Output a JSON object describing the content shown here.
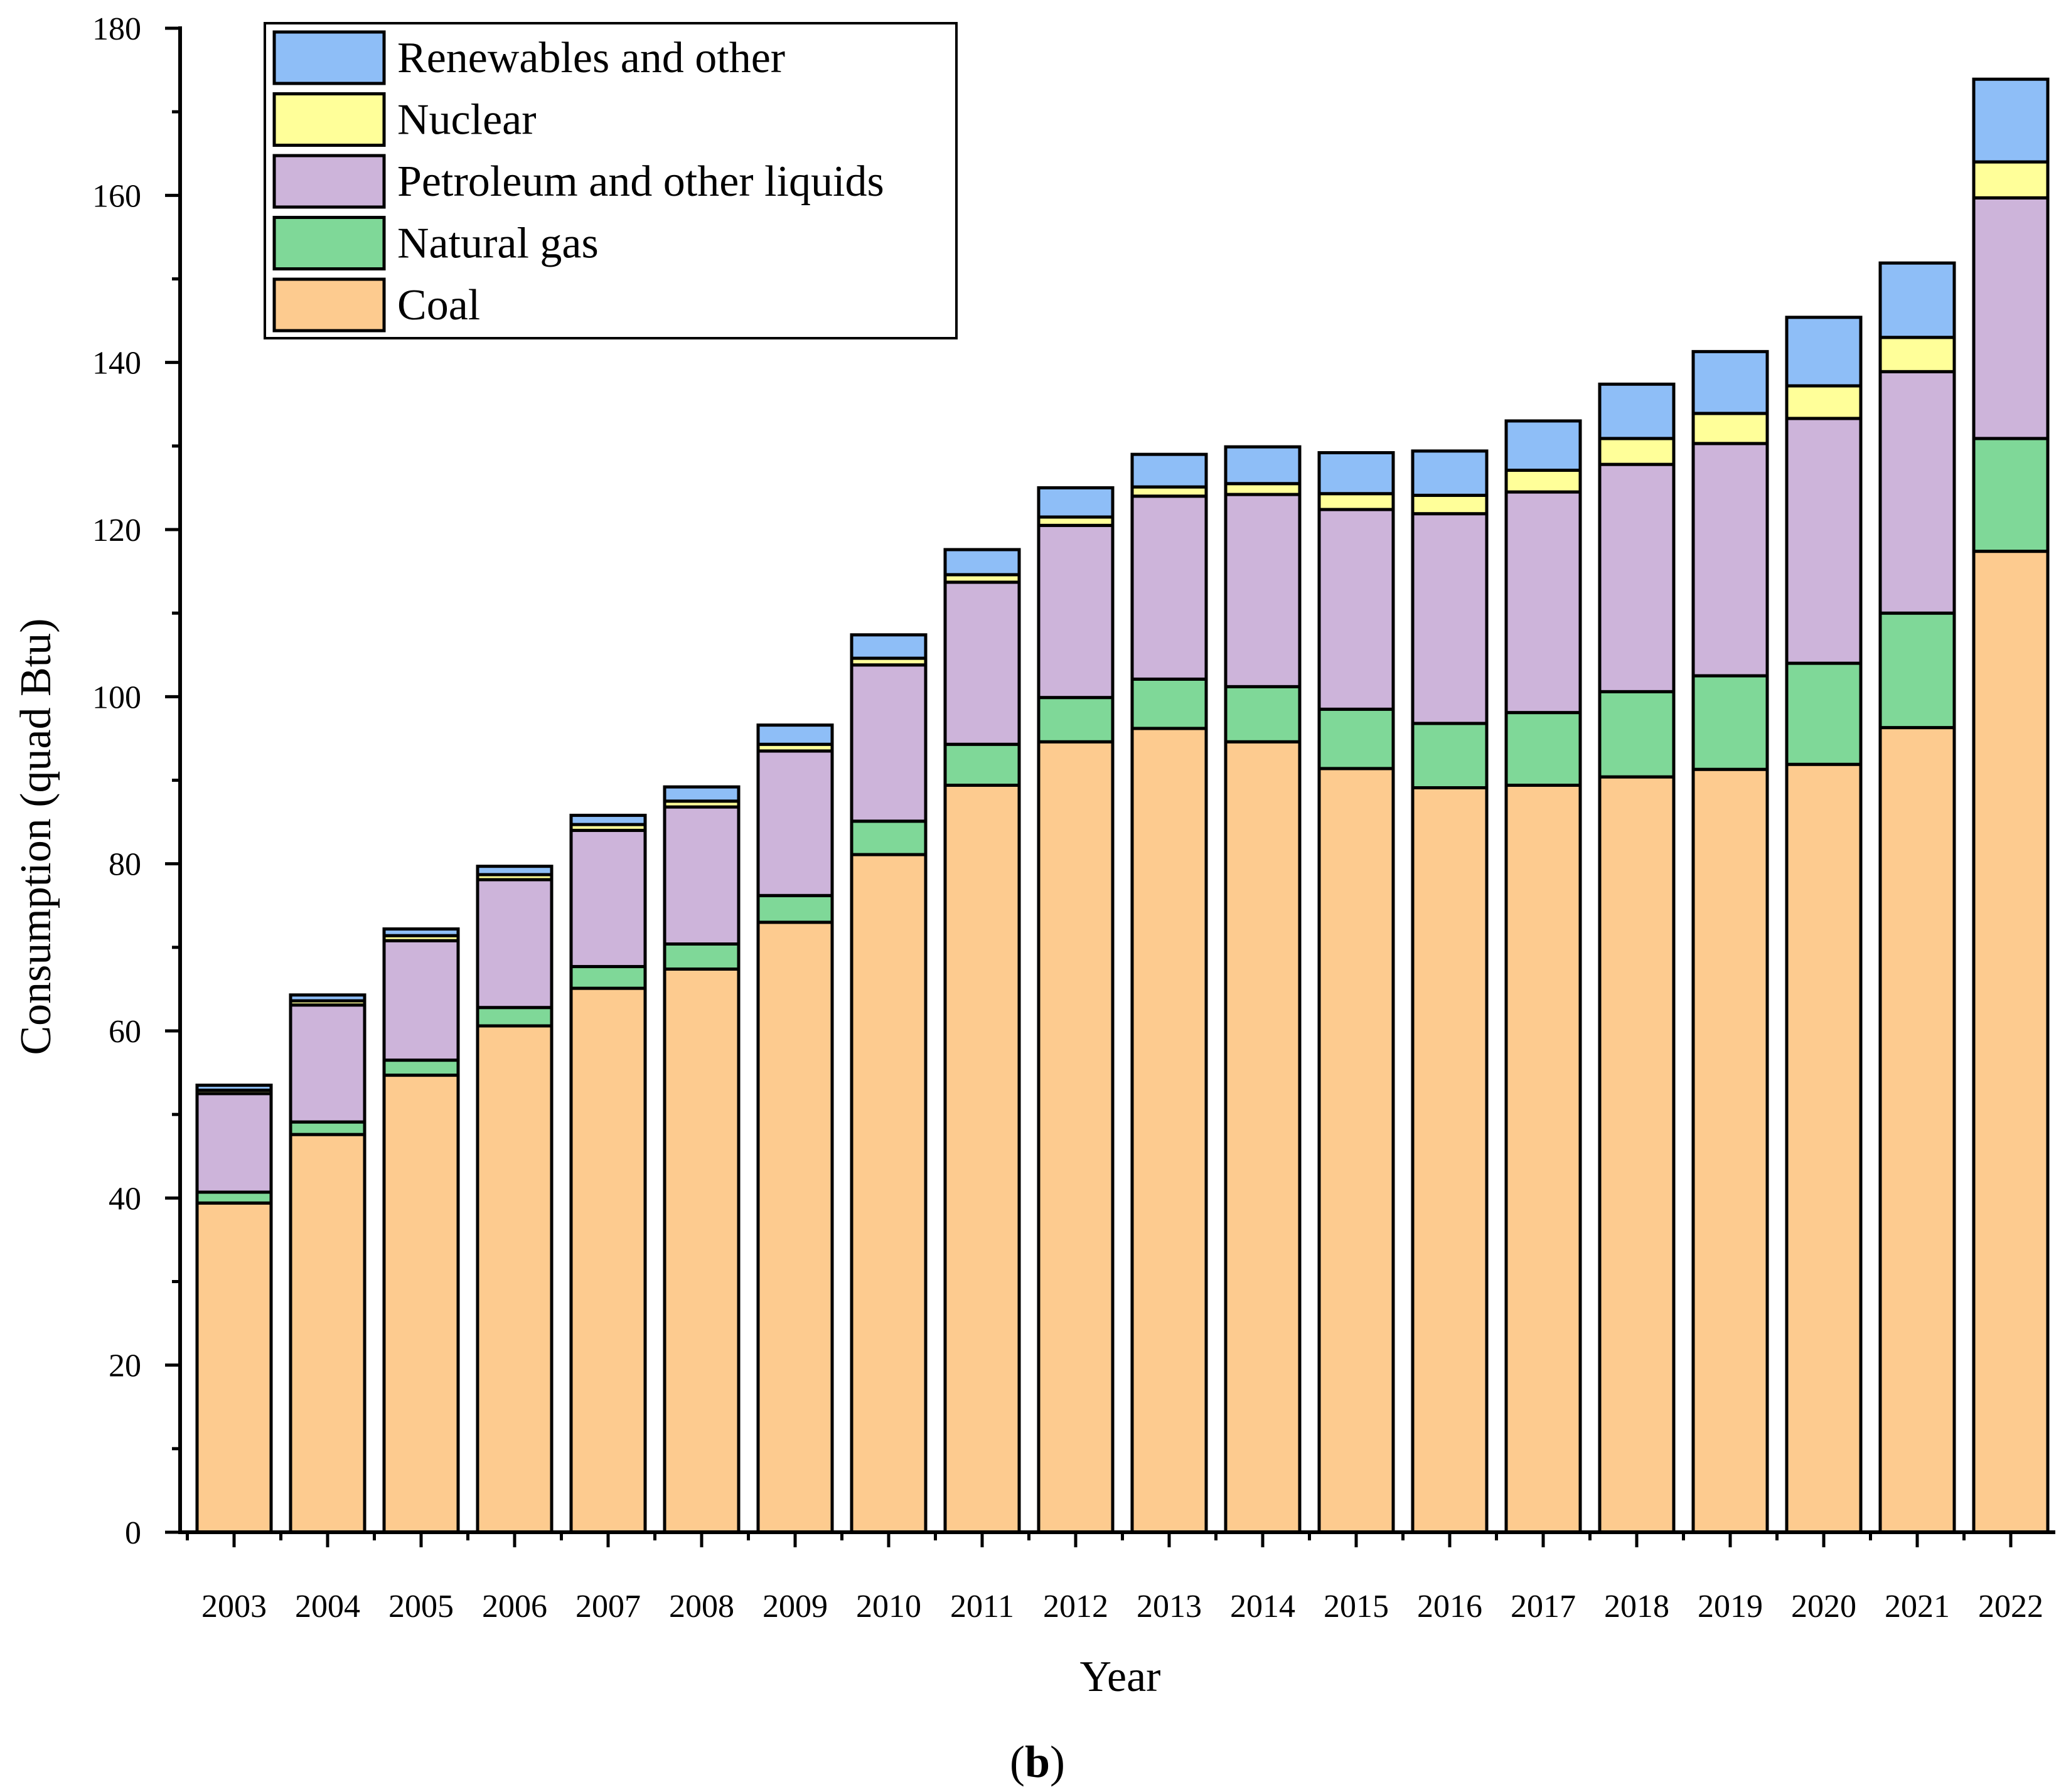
{
  "chart_data": {
    "type": "bar",
    "stacked": true,
    "categories": [
      "2003",
      "2004",
      "2005",
      "2006",
      "2007",
      "2008",
      "2009",
      "2010",
      "2011",
      "2012",
      "2013",
      "2014",
      "2015",
      "2016",
      "2017",
      "2018",
      "2019",
      "2020",
      "2021",
      "2022"
    ],
    "series": [
      {
        "name": "Coal",
        "color": "#FDCB8F",
        "values": [
          39.4,
          47.6,
          54.7,
          60.6,
          65.1,
          67.4,
          73.0,
          81.1,
          89.4,
          94.6,
          96.2,
          94.6,
          91.4,
          89.1,
          89.4,
          90.4,
          91.3,
          91.9,
          96.3,
          117.4
        ]
      },
      {
        "name": "Natural gas",
        "color": "#7FD898",
        "values": [
          1.3,
          1.5,
          1.8,
          2.2,
          2.6,
          3.0,
          3.2,
          4.0,
          4.9,
          5.3,
          5.9,
          6.6,
          7.1,
          7.7,
          8.7,
          10.2,
          11.2,
          12.1,
          13.7,
          13.5
        ]
      },
      {
        "name": "Petroleum and other liquids",
        "color": "#CDB4DA",
        "values": [
          11.8,
          14.0,
          14.3,
          15.3,
          16.3,
          16.4,
          17.3,
          18.7,
          19.4,
          20.6,
          21.9,
          23.0,
          23.9,
          25.1,
          26.4,
          27.2,
          27.8,
          29.3,
          28.9,
          28.8
        ]
      },
      {
        "name": "Nuclear",
        "color": "#FFFF99",
        "values": [
          0.4,
          0.5,
          0.6,
          0.6,
          0.7,
          0.7,
          0.8,
          0.8,
          0.9,
          1.0,
          1.1,
          1.3,
          1.9,
          2.2,
          2.6,
          3.1,
          3.6,
          3.9,
          4.1,
          4.3
        ]
      },
      {
        "name": "Renewables and other",
        "color": "#8EBEF7",
        "values": [
          0.6,
          0.7,
          0.8,
          1.0,
          1.1,
          1.7,
          2.3,
          2.8,
          3.0,
          3.5,
          3.9,
          4.4,
          4.9,
          5.3,
          5.9,
          6.5,
          7.4,
          8.2,
          8.9,
          9.9
        ]
      }
    ],
    "legend_order": [
      "Renewables and other",
      "Nuclear",
      "Petroleum and other liquids",
      "Natural gas",
      "Coal"
    ],
    "legend_position": "top-left",
    "xlabel": "Year",
    "ylabel": "Consumption (quad Btu)",
    "ylim": [
      0,
      180
    ],
    "yticks": [
      0,
      20,
      40,
      60,
      80,
      100,
      120,
      140,
      160,
      180
    ],
    "panel_label": "(b)",
    "grid": false
  }
}
